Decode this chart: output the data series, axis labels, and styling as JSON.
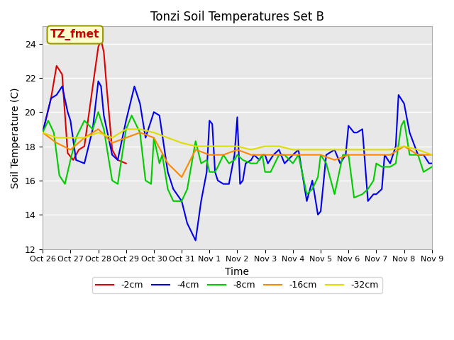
{
  "title": "Tonzi Soil Temperatures Set B",
  "xlabel": "Time",
  "ylabel": "Soil Temperature (C)",
  "ylim": [
    12,
    25
  ],
  "yticks": [
    12,
    14,
    16,
    18,
    20,
    22,
    24
  ],
  "legend_label": "TZ_fmet",
  "legend_box_color": "#ffffcc",
  "legend_box_edge": "#999900",
  "series_labels": [
    "-2cm",
    "-4cm",
    "-8cm",
    "-16cm",
    "-32cm"
  ],
  "series_colors": [
    "#dd0000",
    "#0000ee",
    "#00cc00",
    "#ff8800",
    "#dddd00"
  ],
  "background_color": "#e8e8e8",
  "grid_color": "#ffffff",
  "x_ticks": [
    "Oct 26",
    "Oct 27",
    "Oct 28",
    "Oct 29",
    "Oct 30",
    "Oct 31",
    "Nov 1",
    "Nov 2",
    "Nov 3",
    "Nov 4",
    "Nov 5",
    "Nov 6",
    "Nov 7",
    "Nov 8",
    "Nov 9"
  ],
  "x_tick_days": [
    0,
    1,
    2,
    3,
    4,
    5,
    6,
    7,
    8,
    9,
    10,
    11,
    12,
    13,
    14
  ],
  "data_2cm": [
    [
      0.0,
      18.8
    ],
    [
      0.3,
      20.8
    ],
    [
      0.5,
      22.7
    ],
    [
      0.7,
      22.2
    ],
    [
      0.9,
      17.6
    ],
    [
      1.1,
      17.2
    ],
    [
      1.3,
      17.8
    ],
    [
      1.5,
      18.0
    ],
    [
      2.0,
      23.8
    ],
    [
      2.1,
      24.2
    ],
    [
      2.2,
      23.5
    ],
    [
      2.3,
      21.5
    ],
    [
      2.5,
      17.8
    ],
    [
      2.7,
      17.2
    ],
    [
      3.0,
      17.0
    ]
  ],
  "data_4cm": [
    [
      0.0,
      18.8
    ],
    [
      0.3,
      20.8
    ],
    [
      0.5,
      21.0
    ],
    [
      0.7,
      21.5
    ],
    [
      0.9,
      20.0
    ],
    [
      1.0,
      19.5
    ],
    [
      1.2,
      17.2
    ],
    [
      1.5,
      17.0
    ],
    [
      1.8,
      19.0
    ],
    [
      2.0,
      21.8
    ],
    [
      2.1,
      21.5
    ],
    [
      2.2,
      19.8
    ],
    [
      2.5,
      17.5
    ],
    [
      2.7,
      17.2
    ],
    [
      3.0,
      19.5
    ],
    [
      3.3,
      21.5
    ],
    [
      3.5,
      20.5
    ],
    [
      3.7,
      18.5
    ],
    [
      4.0,
      20.0
    ],
    [
      4.2,
      19.8
    ],
    [
      4.5,
      16.5
    ],
    [
      4.7,
      15.5
    ],
    [
      5.0,
      14.8
    ],
    [
      5.2,
      13.5
    ],
    [
      5.5,
      12.5
    ],
    [
      5.7,
      14.8
    ],
    [
      5.9,
      16.5
    ],
    [
      6.0,
      19.5
    ],
    [
      6.1,
      19.3
    ],
    [
      6.2,
      16.5
    ],
    [
      6.3,
      16.0
    ],
    [
      6.5,
      15.8
    ],
    [
      6.7,
      15.8
    ],
    [
      6.9,
      17.5
    ],
    [
      7.0,
      19.7
    ],
    [
      7.1,
      15.8
    ],
    [
      7.2,
      16.0
    ],
    [
      7.3,
      17.0
    ],
    [
      7.5,
      17.2
    ],
    [
      7.6,
      17.5
    ],
    [
      7.8,
      17.2
    ],
    [
      7.9,
      17.5
    ],
    [
      8.0,
      17.5
    ],
    [
      8.1,
      17.0
    ],
    [
      8.3,
      17.5
    ],
    [
      8.5,
      17.8
    ],
    [
      8.7,
      17.0
    ],
    [
      9.0,
      17.5
    ],
    [
      9.2,
      17.8
    ],
    [
      9.5,
      14.8
    ],
    [
      9.7,
      16.0
    ],
    [
      9.9,
      14.0
    ],
    [
      10.0,
      14.2
    ],
    [
      10.2,
      17.5
    ],
    [
      10.5,
      17.8
    ],
    [
      10.7,
      17.0
    ],
    [
      10.9,
      17.5
    ],
    [
      11.0,
      19.2
    ],
    [
      11.2,
      18.8
    ],
    [
      11.3,
      18.8
    ],
    [
      11.5,
      19.0
    ],
    [
      11.7,
      14.8
    ],
    [
      11.9,
      15.2
    ],
    [
      12.0,
      15.2
    ],
    [
      12.2,
      15.5
    ],
    [
      12.3,
      17.5
    ],
    [
      12.5,
      17.0
    ],
    [
      12.7,
      18.0
    ],
    [
      12.8,
      21.0
    ],
    [
      13.0,
      20.5
    ],
    [
      13.2,
      18.8
    ],
    [
      13.5,
      17.5
    ],
    [
      13.7,
      17.5
    ],
    [
      13.9,
      17.0
    ],
    [
      14.0,
      17.0
    ]
  ],
  "data_8cm": [
    [
      0.0,
      18.8
    ],
    [
      0.2,
      19.5
    ],
    [
      0.4,
      18.8
    ],
    [
      0.6,
      16.3
    ],
    [
      0.8,
      15.8
    ],
    [
      1.0,
      17.2
    ],
    [
      1.2,
      18.5
    ],
    [
      1.5,
      19.5
    ],
    [
      1.8,
      19.0
    ],
    [
      2.0,
      20.0
    ],
    [
      2.2,
      19.0
    ],
    [
      2.5,
      16.0
    ],
    [
      2.7,
      15.8
    ],
    [
      3.0,
      19.0
    ],
    [
      3.2,
      19.8
    ],
    [
      3.5,
      18.8
    ],
    [
      3.7,
      16.0
    ],
    [
      3.9,
      15.8
    ],
    [
      4.0,
      18.5
    ],
    [
      4.2,
      17.0
    ],
    [
      4.3,
      17.5
    ],
    [
      4.5,
      15.5
    ],
    [
      4.7,
      14.8
    ],
    [
      5.0,
      14.8
    ],
    [
      5.2,
      15.5
    ],
    [
      5.5,
      18.3
    ],
    [
      5.7,
      17.0
    ],
    [
      5.9,
      17.2
    ],
    [
      6.0,
      16.5
    ],
    [
      6.2,
      16.5
    ],
    [
      6.3,
      16.8
    ],
    [
      6.5,
      17.5
    ],
    [
      6.7,
      17.0
    ],
    [
      6.9,
      17.2
    ],
    [
      7.0,
      17.5
    ],
    [
      7.2,
      17.2
    ],
    [
      7.5,
      17.0
    ],
    [
      7.7,
      17.0
    ],
    [
      7.9,
      17.5
    ],
    [
      8.0,
      16.5
    ],
    [
      8.2,
      16.5
    ],
    [
      8.5,
      17.5
    ],
    [
      8.7,
      17.5
    ],
    [
      9.0,
      17.0
    ],
    [
      9.2,
      17.5
    ],
    [
      9.5,
      15.2
    ],
    [
      9.7,
      15.5
    ],
    [
      9.9,
      16.2
    ],
    [
      10.0,
      17.5
    ],
    [
      10.2,
      17.0
    ],
    [
      10.5,
      15.2
    ],
    [
      10.8,
      17.5
    ],
    [
      11.0,
      17.5
    ],
    [
      11.2,
      15.0
    ],
    [
      11.5,
      15.2
    ],
    [
      11.7,
      15.5
    ],
    [
      11.9,
      16.0
    ],
    [
      12.0,
      17.0
    ],
    [
      12.2,
      16.8
    ],
    [
      12.5,
      16.8
    ],
    [
      12.7,
      17.0
    ],
    [
      12.9,
      19.2
    ],
    [
      13.0,
      19.5
    ],
    [
      13.2,
      17.5
    ],
    [
      13.5,
      17.5
    ],
    [
      13.7,
      16.5
    ],
    [
      14.0,
      16.8
    ]
  ],
  "data_16cm": [
    [
      0.0,
      18.8
    ],
    [
      0.5,
      18.2
    ],
    [
      1.0,
      17.8
    ],
    [
      1.5,
      18.5
    ],
    [
      2.0,
      19.0
    ],
    [
      2.5,
      18.2
    ],
    [
      3.0,
      18.5
    ],
    [
      3.5,
      18.8
    ],
    [
      4.0,
      18.5
    ],
    [
      4.5,
      17.0
    ],
    [
      5.0,
      16.2
    ],
    [
      5.5,
      17.8
    ],
    [
      6.0,
      17.5
    ],
    [
      6.5,
      17.5
    ],
    [
      7.0,
      17.8
    ],
    [
      7.5,
      17.5
    ],
    [
      8.0,
      17.5
    ],
    [
      8.5,
      17.5
    ],
    [
      9.0,
      17.5
    ],
    [
      9.5,
      17.5
    ],
    [
      10.0,
      17.5
    ],
    [
      10.5,
      17.2
    ],
    [
      11.0,
      17.5
    ],
    [
      11.5,
      17.5
    ],
    [
      12.0,
      17.5
    ],
    [
      12.5,
      17.5
    ],
    [
      13.0,
      18.0
    ],
    [
      13.5,
      17.5
    ],
    [
      14.0,
      17.5
    ]
  ],
  "data_32cm": [
    [
      0.0,
      18.8
    ],
    [
      0.5,
      18.5
    ],
    [
      1.0,
      18.5
    ],
    [
      1.5,
      18.5
    ],
    [
      2.0,
      18.8
    ],
    [
      2.5,
      18.5
    ],
    [
      3.0,
      19.0
    ],
    [
      3.5,
      19.0
    ],
    [
      4.0,
      18.8
    ],
    [
      4.5,
      18.5
    ],
    [
      5.0,
      18.2
    ],
    [
      5.5,
      18.0
    ],
    [
      6.0,
      18.0
    ],
    [
      6.5,
      18.0
    ],
    [
      7.0,
      18.0
    ],
    [
      7.5,
      17.8
    ],
    [
      8.0,
      18.0
    ],
    [
      8.5,
      18.0
    ],
    [
      9.0,
      17.8
    ],
    [
      9.5,
      17.8
    ],
    [
      10.0,
      17.8
    ],
    [
      10.5,
      17.8
    ],
    [
      11.0,
      17.8
    ],
    [
      11.5,
      17.8
    ],
    [
      12.0,
      17.8
    ],
    [
      12.5,
      17.8
    ],
    [
      13.0,
      18.0
    ],
    [
      13.5,
      17.8
    ],
    [
      14.0,
      17.5
    ]
  ]
}
